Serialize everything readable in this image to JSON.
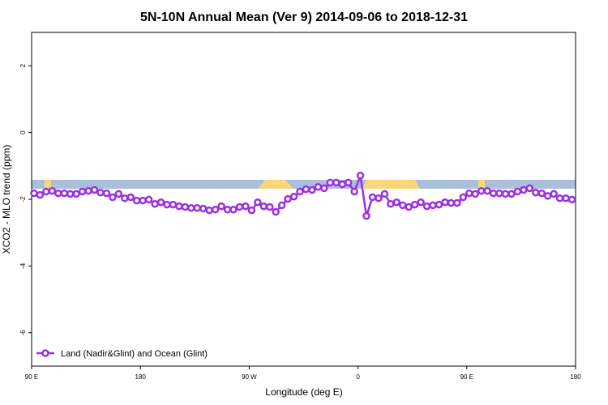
{
  "chart_data": {
    "type": "line",
    "title": "5N-10N Annual Mean (Ver 9)   2014-09-06 to 2018-12-31",
    "xlabel": "Longitude (deg E)",
    "ylabel": "XCO2 - MLO trend (ppm)",
    "xlim": [
      90,
      540
    ],
    "ylim": [
      -7,
      3
    ],
    "xticks": [
      {
        "value": 90,
        "label": "90 E"
      },
      180,
      {
        "value": 270,
        "label": "90 W"
      },
      {
        "value": 360,
        "label": "0"
      },
      {
        "value": 450,
        "label": "90 E"
      },
      {
        "value": 540,
        "label": "180"
      }
    ],
    "yticks": [
      2,
      0,
      -2,
      -4,
      -6
    ],
    "legend": "bottom-left",
    "x": [
      92,
      97,
      102,
      107,
      112,
      117,
      122,
      127,
      132,
      137,
      142,
      147,
      152,
      157,
      162,
      167,
      172,
      177,
      182,
      187,
      192,
      197,
      202,
      207,
      212,
      217,
      222,
      227,
      232,
      237,
      242,
      247,
      252,
      257,
      262,
      267,
      272,
      277,
      282,
      287,
      292,
      297,
      302,
      307,
      312,
      317,
      322,
      327,
      332,
      337,
      342,
      347,
      352,
      357,
      362,
      367,
      372,
      377,
      382,
      387,
      392,
      397,
      402,
      407,
      412,
      417,
      422,
      427,
      432,
      437,
      442,
      447,
      452,
      457,
      462,
      467,
      472,
      477,
      482,
      487,
      492,
      497,
      502,
      507,
      512,
      517,
      522,
      527,
      532,
      537
    ],
    "series": [
      {
        "name": "Land (Nadir&Glint) and Ocean (Glint)",
        "color": "#9b30e0",
        "values": [
          -1.82,
          -1.87,
          -1.77,
          -1.75,
          -1.82,
          -1.82,
          -1.84,
          -1.84,
          -1.77,
          -1.75,
          -1.72,
          -1.8,
          -1.82,
          -1.94,
          -1.84,
          -1.97,
          -1.94,
          -2.04,
          -2.04,
          -2.01,
          -2.14,
          -2.09,
          -2.16,
          -2.16,
          -2.21,
          -2.23,
          -2.26,
          -2.26,
          -2.28,
          -2.33,
          -2.31,
          -2.21,
          -2.31,
          -2.31,
          -2.23,
          -2.21,
          -2.33,
          -2.09,
          -2.21,
          -2.23,
          -2.38,
          -2.18,
          -1.99,
          -1.92,
          -1.77,
          -1.7,
          -1.72,
          -1.63,
          -1.67,
          -1.5,
          -1.5,
          -1.55,
          -1.5,
          -1.77,
          -1.29,
          -2.5,
          -1.94,
          -1.97,
          -1.84,
          -2.14,
          -2.09,
          -2.18,
          -2.23,
          -2.16,
          -2.09,
          -2.21,
          -2.18,
          -2.16,
          -2.09,
          -2.11,
          -2.11,
          -1.94,
          -1.82,
          -1.84,
          -1.75,
          -1.75,
          -1.82,
          -1.82,
          -1.84,
          -1.84,
          -1.77,
          -1.72,
          -1.67,
          -1.8,
          -1.82,
          -1.9,
          -1.84,
          -1.97,
          -1.97,
          -2.01
        ]
      }
    ]
  }
}
